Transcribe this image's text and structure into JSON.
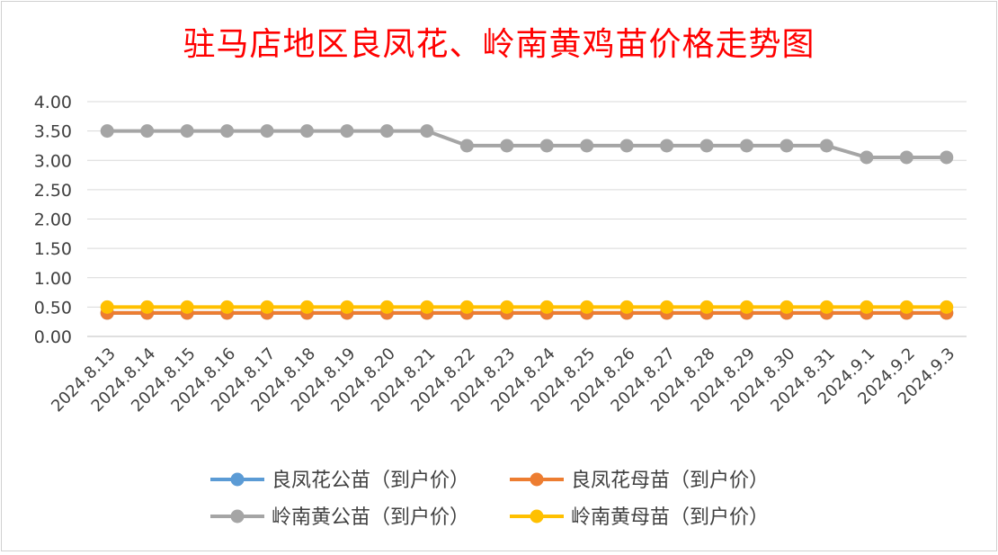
{
  "chart_data": {
    "type": "line",
    "title": "驻马店地区良凤花、岭南黄鸡苗价格走势图",
    "xlabel": "",
    "ylabel": "",
    "ylim": [
      0,
      4
    ],
    "y_ticks": [
      "0.00",
      "0.50",
      "1.00",
      "1.50",
      "2.00",
      "2.50",
      "3.00",
      "3.50",
      "4.00"
    ],
    "grid": true,
    "legend_position": "bottom",
    "categories": [
      "2024.8.13",
      "2024.8.14",
      "2024.8.15",
      "2024.8.16",
      "2024.8.17",
      "2024.8.18",
      "2024.8.19",
      "2024.8.20",
      "2024.8.21",
      "2024.8.22",
      "2024.8.23",
      "2024.8.24",
      "2024.8.25",
      "2024.8.26",
      "2024.8.27",
      "2024.8.28",
      "2024.8.29",
      "2024.8.30",
      "2024.8.31",
      "2024.9.1",
      "2024.9.2",
      "2024.9.3"
    ],
    "series": [
      {
        "name": "良凤花公苗（到户价）",
        "color": "#5b9bd5",
        "values": [
          0.4,
          0.4,
          0.4,
          0.4,
          0.4,
          0.4,
          0.4,
          0.4,
          0.4,
          0.4,
          0.4,
          0.4,
          0.4,
          0.4,
          0.4,
          0.4,
          0.4,
          0.4,
          0.4,
          0.4,
          0.4,
          0.4
        ]
      },
      {
        "name": "良凤花母苗（到户价）",
        "color": "#ed7d31",
        "values": [
          0.4,
          0.4,
          0.4,
          0.4,
          0.4,
          0.4,
          0.4,
          0.4,
          0.4,
          0.4,
          0.4,
          0.4,
          0.4,
          0.4,
          0.4,
          0.4,
          0.4,
          0.4,
          0.4,
          0.4,
          0.4,
          0.4
        ]
      },
      {
        "name": "岭南黄公苗（到户价）",
        "color": "#a5a5a5",
        "values": [
          3.5,
          3.5,
          3.5,
          3.5,
          3.5,
          3.5,
          3.5,
          3.5,
          3.5,
          3.25,
          3.25,
          3.25,
          3.25,
          3.25,
          3.25,
          3.25,
          3.25,
          3.25,
          3.25,
          3.05,
          3.05,
          3.05
        ]
      },
      {
        "name": "岭南黄母苗（到户价）",
        "color": "#ffc000",
        "values": [
          0.5,
          0.5,
          0.5,
          0.5,
          0.5,
          0.5,
          0.5,
          0.5,
          0.5,
          0.5,
          0.5,
          0.5,
          0.5,
          0.5,
          0.5,
          0.5,
          0.5,
          0.5,
          0.5,
          0.5,
          0.5,
          0.5
        ]
      }
    ]
  }
}
